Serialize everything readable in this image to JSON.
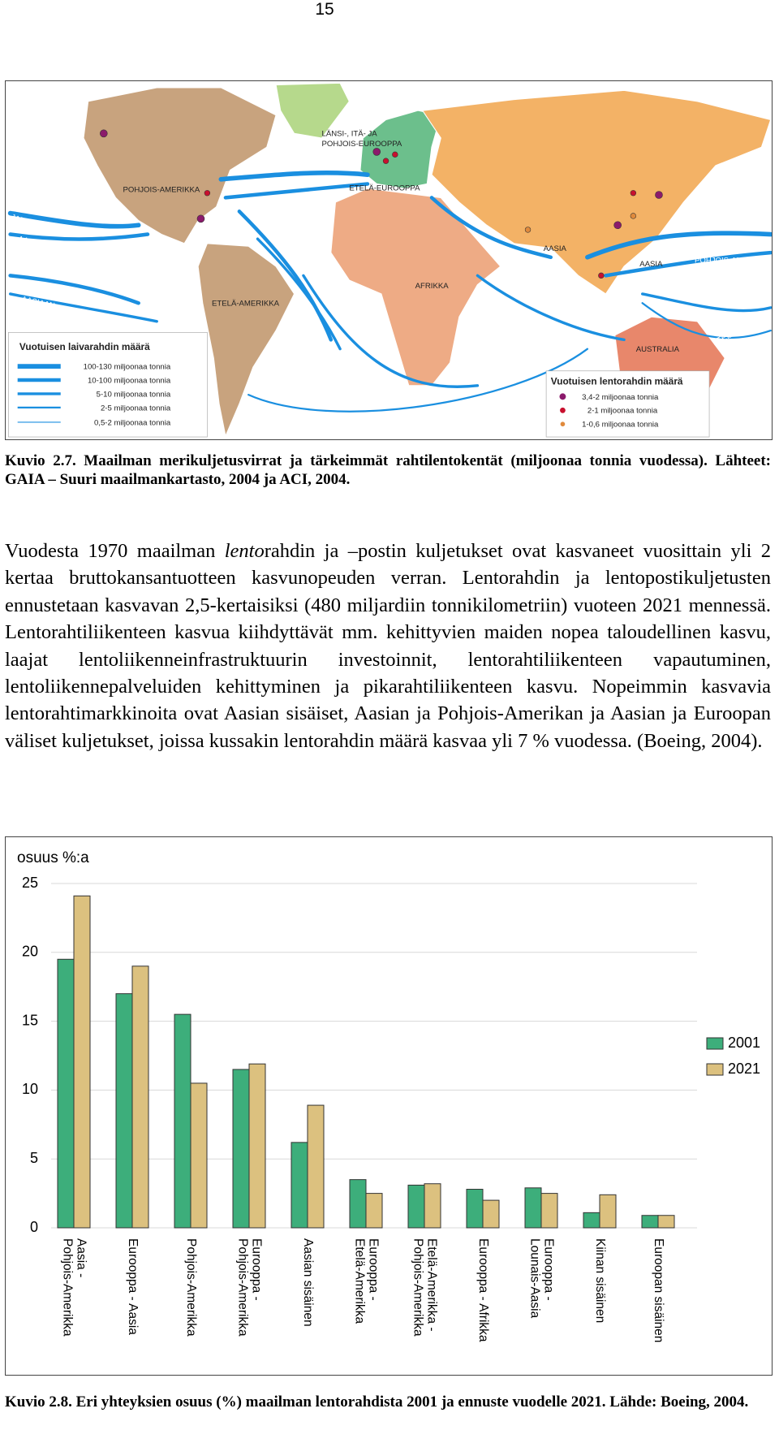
{
  "page_number": "15",
  "map": {
    "labels": [
      "LÄNSI-, ITÄ- JA",
      "POHJOIS-EUROOPPA",
      "POHJOIS-AMERIKKA",
      "ETELÄ-EUROOPPA",
      "JAPANIIN",
      "AASIAAN",
      "JAPANIIN",
      "AASIAAN",
      "AASIA",
      "AASIA",
      "POHJOIS-AMERIKKAAN",
      "AFRIKKA",
      "ETELÄ-AMERIKKA",
      "AUSTRALIA",
      "ETELÄ-AMERIKKAAN"
    ]
  },
  "sea_legend": {
    "title": "Vuotuisen laivarahdin määrä",
    "items": [
      "100-130 miljoonaa tonnia",
      "10-100 miljoonaa tonnia",
      "5-10 miljoonaa tonnia",
      "2-5 miljoonaa tonnia",
      "0,5-2 miljoonaa tonnia"
    ]
  },
  "air_legend": {
    "title": "Vuotuisen lentorahdin määrä",
    "items": [
      "3,4-2 miljoonaa tonnia",
      "2-1 miljoonaa tonnia",
      "1-0,6 miljoonaa tonnia"
    ]
  },
  "figure_caption_1": "Kuvio 2.7. Maailman merikuljetusvirrat ja tärkeimmät rahtilentokentät (miljoonaa tonnia vuodessa). Lähteet: GAIA – Suuri maailmankartasto, 2004 ja ACI, 2004.",
  "body": [
    "Vuodesta 1970 maailman ",
    "lento",
    "rahdin ja –postin kuljetukset ovat kasvaneet vuosittain yli 2 kertaa bruttokansantuotteen kasvunopeuden verran. Lentorahdin ja lentopostikuljetusten ennustetaan kasvavan 2,5-kertaisiksi (480 miljardiin tonnikilometriin) vuoteen 2021 mennessä. Lentorahtiliikenteen kasvua kiihdyttävät mm. kehittyvien maiden nopea taloudellinen kasvu, laajat lentoliikenneinfrastruktuurin investoinnit, lentorahtiliikenteen vapautuminen, lentoliikennepalveluiden kehittyminen ja pikarahtiliikenteen kasvu. Nopeimmin kasvavia lentorahtimarkkinoita ovat Aasian sisäiset, Aasian ja Pohjois-Amerikan ja Aasian ja Euroopan väliset kuljetukset, joissa kussakin lentorahdin määrä kasvaa yli 7 % vuodessa. (Boeing, 2004)."
  ],
  "chart_data": {
    "type": "bar",
    "y_label": "osuus %:a",
    "categories": [
      [
        "Aasia -",
        "Pohjois-Amerikka"
      ],
      [
        "Eurooppa - Aasia"
      ],
      [
        "Pohjois-Amerikka"
      ],
      [
        "Eurooppa -",
        "Pohjois-Amerikka"
      ],
      [
        "Aasian sisäinen"
      ],
      [
        "Eurooppa -",
        "Etelä-Amerikka"
      ],
      [
        "Etelä-Amerikka -",
        "Pohjois-Amerikka"
      ],
      [
        "Eurooppa - Afrikka"
      ],
      [
        "Eurooppa -",
        "Lounais-Aasia"
      ],
      [
        "Kiinan sisäinen"
      ],
      [
        "Euroopan sisäinen"
      ]
    ],
    "series": [
      {
        "name": "2001",
        "color": "#3dae7b",
        "values": [
          19.5,
          17.0,
          15.5,
          11.5,
          6.2,
          3.5,
          3.1,
          2.8,
          2.9,
          1.1,
          0.9
        ]
      },
      {
        "name": "2021",
        "color": "#dcc17f",
        "values": [
          24.1,
          19.0,
          10.5,
          11.9,
          8.9,
          2.5,
          3.2,
          2.0,
          2.5,
          2.4,
          0.9
        ]
      }
    ],
    "ylim": [
      0,
      25
    ],
    "yticks": [
      0,
      5,
      10,
      15,
      20,
      25
    ],
    "grid": true,
    "legend": "right"
  },
  "figure_caption_2": "Kuvio 2.8. Eri yhteyksien osuus (%) maailman lentorahdista 2001 ja ennuste vuodelle 2021. Lähde: Boeing, 2004."
}
